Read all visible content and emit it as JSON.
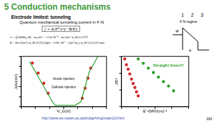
{
  "slide": {
    "title": "5 Conduction mechanisms",
    "heading": "Electrode limited: tunneling",
    "subheading": "Quantum mechanical tunneling current in F-N",
    "formula": "j = A·E²·e^(−B/E)",
    "formula_lines": [
      "A = q³/(8πhφ_B) · m₀/m* = 1.54·10⁻⁶ · m₀/(m*·φ_B)  [A/V²]",
      "B = 8π√(2m*)·φ_B^(3/2)/(3qh) = 6.83·10⁷ · √(m*/m₀)·φ_B^(3/2)  [V/cm]"
    ],
    "diagram": {
      "numbers": [
        "1",
        "2",
        "3"
      ],
      "label": "F-N regime",
      "phi": "φ",
      "a": "a"
    },
    "url": "http://www.iue.tuwien.ac.at/phd/gehring/node113.html",
    "page": 163
  },
  "chart_data": [
    {
      "type": "scatter",
      "x_label": "V_G(V)",
      "y_label": "J(A/cm²)",
      "log": "y",
      "xlim": [
        -15,
        15
      ],
      "xticks": [
        -15,
        -10,
        -5,
        0,
        5,
        10,
        15
      ],
      "ylim": [
        1e-10,
        1
      ],
      "yticks": [
        1e-10,
        1e-08,
        1e-06,
        0.0001,
        0.01,
        1
      ],
      "tick_labels": false,
      "grid": false,
      "annotations": [
        "Anode injection",
        "Cathode injection"
      ],
      "series": [
        {
          "type": "line",
          "color": "#2ca02c",
          "line_style": "solid",
          "x": [
            -12,
            -10,
            -8,
            -6,
            -5,
            -4,
            -3,
            -2,
            0,
            2,
            4,
            6,
            7,
            8,
            9,
            10,
            11,
            12
          ],
          "values": [
            0.1,
            0.001,
            1e-05,
            1e-07,
            1e-08,
            1e-09,
            2e-10,
            2e-10,
            2e-10,
            2e-10,
            2e-10,
            1e-09,
            1e-07,
            1e-05,
            0.001,
            0.01,
            0.1,
            1
          ]
        },
        {
          "type": "scatter",
          "color": "#d62728",
          "marker": "circle",
          "x": [
            -11,
            -9,
            -7,
            -5.5,
            6.5,
            7.5,
            8.5,
            9.5
          ],
          "values": [
            0.05,
            0.0005,
            5e-06,
            5e-08,
            5e-09,
            5e-07,
            5e-05,
            0.005
          ]
        }
      ]
    },
    {
      "type": "scatter",
      "x_label": "E⁻¹(MV/cm)⁻¹",
      "y_label": "J/E²",
      "log": "y",
      "xlim": [
        0.1,
        0.5
      ],
      "xticks": [
        0.1,
        0.2,
        0.3,
        0.4,
        0.5
      ],
      "ylim": [
        1e-12,
        1e-06
      ],
      "yticks": [
        1e-12,
        1e-10,
        1e-08,
        1e-06
      ],
      "tick_labels": false,
      "grid": false,
      "annotations": [
        "Straight lines!!!"
      ],
      "series": [
        {
          "type": "scatter",
          "color": "#d62728",
          "marker": "circle",
          "x": [
            0.12,
            0.13,
            0.14,
            0.15,
            0.16,
            0.17,
            0.18,
            0.19,
            0.2
          ],
          "values": [
            5e-07,
            1e-07,
            3e-08,
            8e-09,
            2e-09,
            6e-10,
            2e-10,
            6e-11,
            2e-11
          ]
        },
        {
          "type": "scatter",
          "color": "#2ca02c",
          "marker": "circle",
          "x": [
            0.2,
            0.23,
            0.26,
            0.29,
            0.32,
            0.35,
            0.38,
            0.41
          ],
          "values": [
            5e-07,
            1.5e-07,
            4e-08,
            1.2e-08,
            3.5e-09,
            1e-09,
            3e-10,
            8e-11
          ]
        }
      ]
    }
  ]
}
